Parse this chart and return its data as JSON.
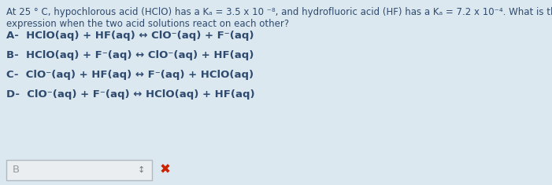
{
  "bg_color": "#dce8f0",
  "text_color": "#2e4a6e",
  "option_color": "#2e4a6e",
  "title_line1": "At 25 ° C, hypochlorous acid (HClO) has a Kₐ = 3.5 x 10 ⁻⁸, and hydrofluoric acid (HF) has a Kₐ = 7.2 x 10⁻⁴. What is the correct equilibrium",
  "title_line2": "expression when the two acid solutions react on each other?",
  "option_A": "A-  HClO(aq) + HF(aq) ↔ ClO⁻(aq) + F⁻(aq)",
  "option_B": "B-  HClO(aq) + F⁻(aq) ↔ ClO⁻(aq) + HF(aq)",
  "option_C": "C-  ClO⁻(aq) + HF(aq) ↔ F⁻(aq) + HClO(aq)",
  "option_D": "D-  ClO⁻(aq) + F⁻(aq) ↔ HClO(aq) + HF(aq)",
  "answer": "B",
  "answer_box_color": "#eaeef0",
  "answer_box_border": "#b0b8c0",
  "font_size_question": 8.5,
  "font_size_option": 9.5,
  "answer_font_size": 9.5,
  "x_red": "#cc2200"
}
